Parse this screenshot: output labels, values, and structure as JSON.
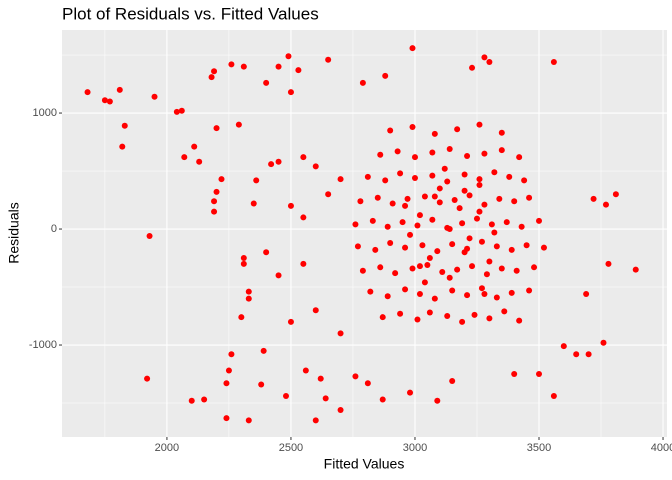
{
  "chart_data": {
    "type": "scatter",
    "title": "Plot of Residuals vs. Fitted Values",
    "x_label": "Fitted Values",
    "y_label": "Residuals",
    "color": "#ff0000",
    "xlim": [
      1577,
      4016
    ],
    "ylim": [
      -1793,
      1716
    ],
    "xticks": [
      2000,
      2500,
      3000,
      3500,
      4000
    ],
    "yticks": [
      -1000,
      0,
      1000
    ],
    "xminor": [
      1750,
      2250,
      2750,
      3250,
      3750
    ],
    "yminor": [
      -1500,
      -500,
      500,
      1500
    ],
    "grid": true,
    "x": [
      1680,
      1750,
      1770,
      1810,
      1820,
      1830,
      1930,
      1950,
      1920,
      2040,
      2060,
      2070,
      2110,
      2130,
      2150,
      2180,
      2190,
      2190,
      2200,
      2190,
      2200,
      2220,
      2240,
      2240,
      2250,
      2260,
      2290,
      2310,
      2310,
      2310,
      2330,
      2300,
      2330,
      2330,
      2260,
      2400,
      2420,
      2450,
      2490,
      2480,
      2500,
      2530,
      2560,
      2600,
      2650,
      2700,
      2790,
      2880,
      2870,
      2990,
      3090,
      3230,
      3280,
      3560,
      3300,
      3560,
      3760,
      3780,
      3810,
      3890,
      3700,
      3650,
      3770,
      3720,
      3690,
      3600,
      2100,
      2390,
      2350,
      2360,
      2380,
      2620,
      2640,
      2760,
      2810,
      2980,
      3150,
      3400,
      3500,
      2450,
      2550,
      2600,
      2650,
      2700,
      2550,
      2600,
      2700,
      2500,
      2450,
      2400,
      2500,
      2550,
      2870,
      2940,
      3010,
      3060,
      3130,
      3190,
      3240,
      3300,
      3360,
      3420,
      2820,
      2890,
      2960,
      3020,
      3080,
      3150,
      3210,
      3270,
      3330,
      3390,
      3460,
      2790,
      2860,
      2920,
      2990,
      3050,
      3110,
      3170,
      3230,
      3290,
      3350,
      3410,
      3480,
      2770,
      2840,
      2900,
      2960,
      3030,
      3090,
      3150,
      3210,
      3270,
      3330,
      3390,
      3450,
      3520,
      2760,
      2830,
      2890,
      2950,
      3010,
      3070,
      3130,
      3190,
      3250,
      3310,
      3370,
      3430,
      3500,
      2780,
      2850,
      2910,
      2970,
      3040,
      3100,
      3160,
      3220,
      3280,
      3340,
      3400,
      3460,
      2810,
      2880,
      2940,
      3000,
      3070,
      3130,
      3200,
      3260,
      3320,
      3380,
      3440,
      2860,
      2930,
      3000,
      3070,
      3140,
      3210,
      3280,
      3350,
      3420,
      2900,
      2990,
      3080,
      3170,
      3260,
      3350,
      2980,
      3020,
      3060,
      3100,
      3140,
      3180,
      3220,
      3260,
      3300,
      3020,
      3080,
      3140,
      3200,
      3260,
      3320,
      2960,
      3040,
      3120,
      3200,
      3280
    ],
    "values": [
      1180,
      1110,
      1100,
      1200,
      710,
      890,
      -60,
      1140,
      -1290,
      1010,
      1020,
      620,
      710,
      580,
      -1470,
      1310,
      1360,
      150,
      870,
      240,
      320,
      430,
      -1330,
      -1630,
      -1220,
      1420,
      900,
      1400,
      -300,
      -250,
      -1650,
      -760,
      -540,
      -600,
      -1080,
      1260,
      560,
      1400,
      1490,
      -1440,
      1180,
      1370,
      -1220,
      -1650,
      1460,
      -1560,
      1260,
      1320,
      -1470,
      1560,
      -1480,
      1390,
      1480,
      1440,
      1440,
      -1440,
      -980,
      -300,
      300,
      -350,
      -1080,
      -1080,
      210,
      260,
      -560,
      -1010,
      -1480,
      -1050,
      220,
      420,
      -1340,
      -1290,
      -1460,
      -1270,
      -1330,
      -1410,
      -1310,
      -1250,
      -1250,
      580,
      620,
      540,
      300,
      430,
      -300,
      -700,
      -900,
      -800,
      -400,
      -200,
      200,
      100,
      -760,
      -730,
      -780,
      -720,
      -750,
      -800,
      -740,
      -770,
      -710,
      -790,
      -540,
      -580,
      -520,
      -560,
      -600,
      -530,
      -570,
      -510,
      -590,
      -550,
      -530,
      -360,
      -330,
      -380,
      -340,
      -310,
      -370,
      -350,
      -320,
      -390,
      -340,
      -360,
      -330,
      -150,
      -180,
      -120,
      -160,
      -140,
      -190,
      -130,
      -170,
      -110,
      -150,
      -180,
      -140,
      -160,
      40,
      70,
      20,
      60,
      30,
      80,
      10,
      50,
      90,
      40,
      60,
      20,
      70,
      240,
      270,
      220,
      260,
      280,
      230,
      250,
      290,
      210,
      260,
      240,
      270,
      450,
      420,
      480,
      440,
      460,
      410,
      470,
      430,
      490,
      450,
      420,
      640,
      670,
      620,
      660,
      690,
      630,
      650,
      680,
      620,
      850,
      880,
      820,
      860,
      900,
      830,
      -50,
      120,
      -250,
      350,
      -420,
      180,
      -80,
      380,
      -280,
      -320,
      280,
      0,
      -200,
      150,
      -30,
      200,
      -460,
      520,
      330,
      -560
    ]
  }
}
